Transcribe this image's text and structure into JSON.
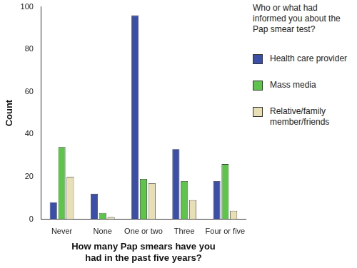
{
  "chart_data": {
    "type": "bar",
    "x_label": "How many Pap smears have you had in the past five years?",
    "y_label": "Count",
    "legend_title": "Who or what had informed you about the Pap smear test?",
    "categories": [
      "Never",
      "None",
      "One or two",
      "Three",
      "Four or five"
    ],
    "series": [
      {
        "name": "Health care provider",
        "color": "#3b4ea8",
        "values": [
          8,
          12,
          96,
          33,
          18
        ]
      },
      {
        "name": "Mass media",
        "color": "#5ec44c",
        "values": [
          34,
          3,
          19,
          18,
          26
        ]
      },
      {
        "name": "Relative/family member/friends",
        "color": "#e8e0b4",
        "values": [
          20,
          1,
          17,
          9,
          4
        ]
      }
    ],
    "ylim": [
      0,
      100
    ],
    "yticks": [
      0,
      20,
      40,
      60,
      80,
      100
    ],
    "grid": false,
    "legend": "right"
  }
}
